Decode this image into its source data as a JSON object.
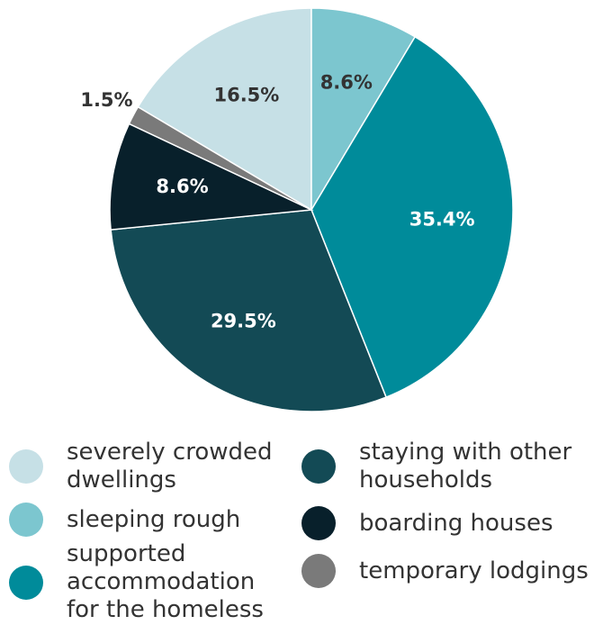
{
  "chart_data": {
    "type": "pie",
    "categories": [
      "severely crowded dwellings",
      "sleeping rough",
      "supported accommodation for the homeless",
      "staying with other households",
      "boarding houses",
      "temporary lodgings"
    ],
    "values": [
      16.5,
      8.6,
      35.4,
      29.5,
      8.6,
      1.5
    ],
    "value_labels": [
      "16.5%",
      "8.6%",
      "35.4%",
      "29.5%",
      "8.6%",
      "1.5%"
    ],
    "colors": [
      "#c6e0e6",
      "#7cc6cf",
      "#008b9a",
      "#134a55",
      "#08202b",
      "#7a7a7a"
    ],
    "legend": "bottom"
  }
}
